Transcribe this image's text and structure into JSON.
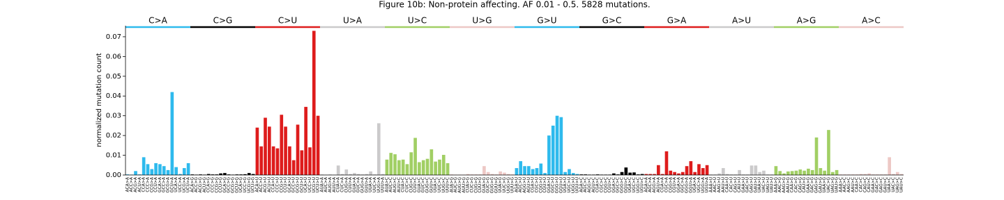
{
  "chart_data": {
    "type": "bar",
    "title": "Figure 10b: Non-protein affecting. AF 0.01 - 0.5. 5828 mutations.",
    "y_label": "normalized mutation count",
    "ylim": [
      0,
      0.0756
    ],
    "yticks": [
      {
        "value": 0,
        "label": "0.00"
      },
      {
        "value": 0.01,
        "label": "0.01"
      },
      {
        "value": 0.02,
        "label": "0.02"
      },
      {
        "value": 0.03,
        "label": "0.03"
      },
      {
        "value": 0.04,
        "label": "0.04"
      },
      {
        "value": 0.05,
        "label": "0.05"
      },
      {
        "value": 0.06,
        "label": "0.06"
      },
      {
        "value": 0.07,
        "label": "0.07"
      }
    ],
    "groups": [
      {
        "name": "C>A",
        "color": "#2ebaed",
        "categories": [
          "ACA>A",
          "ACC>A",
          "ACG>A",
          "ACU>A",
          "CCA>A",
          "CCC>A",
          "CCG>A",
          "CCU>A",
          "GCA>A",
          "GCC>A",
          "GCG>A",
          "GCU>A",
          "UCA>A",
          "UCC>A",
          "UCG>A",
          "UCU>A"
        ],
        "values": [
          0.0003,
          0.0002,
          0.002,
          0.0003,
          0.009,
          0.0055,
          0.003,
          0.006,
          0.0055,
          0.0045,
          0.0025,
          0.042,
          0.004,
          0.0005,
          0.0035,
          0.006
        ]
      },
      {
        "name": "C>G",
        "color": "#000000",
        "categories": [
          "ACA>G",
          "ACC>G",
          "ACG>G",
          "ACU>G",
          "CCA>G",
          "CCC>G",
          "CCG>G",
          "CCU>G",
          "GCA>G",
          "GCC>G",
          "GCG>G",
          "GCU>G",
          "UCA>G",
          "UCC>G",
          "UCG>G",
          "UCU>G"
        ],
        "values": [
          0.0003,
          0.0002,
          0.0003,
          0.0002,
          0.0005,
          0.0003,
          0.0003,
          0.0008,
          0.001,
          0.0003,
          0.0002,
          0.0003,
          0.0003,
          0.0004,
          0.001,
          0.0005
        ]
      },
      {
        "name": "C>U",
        "color": "#de1c1c",
        "categories": [
          "ACA>U",
          "ACC>U",
          "ACG>U",
          "ACU>U",
          "CCA>U",
          "CCC>U",
          "CCG>U",
          "CCU>U",
          "GCA>U",
          "GCC>U",
          "GCG>U",
          "GCU>U",
          "UCA>U",
          "UCC>U",
          "UCG>U",
          "UCU>U"
        ],
        "values": [
          0.024,
          0.0145,
          0.029,
          0.0245,
          0.0145,
          0.0135,
          0.0305,
          0.0245,
          0.0145,
          0.0075,
          0.0255,
          0.0125,
          0.0345,
          0.014,
          0.073,
          0.03
        ]
      },
      {
        "name": "U>A",
        "color": "#cbcacb",
        "categories": [
          "AUA>A",
          "AUC>A",
          "AUG>A",
          "AUU>A",
          "CUA>A",
          "CUC>A",
          "CUG>A",
          "CUU>A",
          "GUA>A",
          "GUC>A",
          "GUG>A",
          "GUU>A",
          "UUA>A",
          "UUC>A",
          "UUG>A",
          "UUU>A"
        ],
        "values": [
          0.0003,
          0.0002,
          0.0003,
          0.0002,
          0.0048,
          0.0005,
          0.0028,
          0.0005,
          0.001,
          0.0005,
          0.0003,
          0.0005,
          0.0018,
          0.0003,
          0.0262,
          0.0005
        ]
      },
      {
        "name": "U>C",
        "color": "#a1cf64",
        "categories": [
          "AUA>C",
          "AUC>C",
          "AUG>C",
          "AUU>C",
          "CUA>C",
          "CUC>C",
          "CUG>C",
          "CUU>C",
          "GUA>C",
          "GUC>C",
          "GUG>C",
          "GUU>C",
          "UUA>C",
          "UUC>C",
          "UUG>C",
          "UUU>C"
        ],
        "values": [
          0.0078,
          0.0112,
          0.0105,
          0.0075,
          0.0078,
          0.0055,
          0.0115,
          0.0188,
          0.0065,
          0.0075,
          0.0082,
          0.013,
          0.0068,
          0.0078,
          0.0102,
          0.006
        ]
      },
      {
        "name": "U>G",
        "color": "#edc8c5",
        "categories": [
          "AUA>G",
          "AUC>G",
          "AUG>G",
          "AUU>G",
          "CUA>G",
          "CUC>G",
          "CUG>G",
          "CUU>G",
          "GUA>G",
          "GUC>G",
          "GUG>G",
          "GUU>G",
          "UUA>G",
          "UUC>G",
          "UUG>G",
          "UUU>G"
        ],
        "values": [
          0.0003,
          0.0002,
          0.0002,
          0.0002,
          0.0005,
          0.0003,
          0.0003,
          0.0003,
          0.0045,
          0.0015,
          0.0005,
          0.0003,
          0.0018,
          0.0012,
          0.0005,
          0.0003
        ]
      },
      {
        "name": "G>U",
        "color": "#2ebaed",
        "categories": [
          "AGA>U",
          "AGC>U",
          "AGG>U",
          "AGU>U",
          "CGA>U",
          "CGC>U",
          "CGG>U",
          "CGU>U",
          "GGA>U",
          "GGC>U",
          "GGG>U",
          "GGU>U",
          "UGA>U",
          "UGC>U",
          "UGG>U",
          "UGU>U"
        ],
        "values": [
          0.0035,
          0.007,
          0.0045,
          0.0045,
          0.003,
          0.0035,
          0.0058,
          0.001,
          0.02,
          0.025,
          0.03,
          0.0293,
          0.0015,
          0.003,
          0.001,
          0.0005
        ]
      },
      {
        "name": "G>C",
        "color": "#000000",
        "categories": [
          "AGA>C",
          "AGC>C",
          "AGG>C",
          "AGU>C",
          "CGA>C",
          "CGC>C",
          "CGG>C",
          "CGU>C",
          "GGA>C",
          "GGC>C",
          "GGG>C",
          "GGU>C",
          "UGA>C",
          "UGC>C",
          "UGG>C",
          "UGU>C"
        ],
        "values": [
          0.0003,
          0.0003,
          0.0002,
          0.0002,
          0.0003,
          0.0002,
          0.0002,
          0.0002,
          0.0008,
          0.0003,
          0.0015,
          0.0038,
          0.0012,
          0.0013,
          0.0003,
          0.0005
        ]
      },
      {
        "name": "G>A",
        "color": "#de1c1c",
        "categories": [
          "AGA>A",
          "AGC>A",
          "AGG>A",
          "AGU>A",
          "CGA>A",
          "CGC>A",
          "CGG>A",
          "CGU>A",
          "GGA>A",
          "GGC>A",
          "GGG>A",
          "GGU>A",
          "UGA>A",
          "UGC>A",
          "UGG>A",
          "UGU>A"
        ],
        "values": [
          0.0005,
          0.0005,
          0.0005,
          0.005,
          0.0005,
          0.012,
          0.0022,
          0.0015,
          0.0008,
          0.0015,
          0.0045,
          0.007,
          0.0015,
          0.0055,
          0.0035,
          0.005
        ]
      },
      {
        "name": "A>U",
        "color": "#cbcacb",
        "categories": [
          "AAA>U",
          "AAC>U",
          "AAG>U",
          "AAU>U",
          "CAA>U",
          "CAC>U",
          "CAG>U",
          "CAU>U",
          "GAA>U",
          "GAC>U",
          "GAG>U",
          "GAU>U",
          "UAA>U",
          "UAC>U",
          "UAG>U",
          "UAU>U"
        ],
        "values": [
          0.0003,
          0.0003,
          0.0008,
          0.0035,
          0.0005,
          0.0003,
          0.0003,
          0.0025,
          0.0003,
          0.0003,
          0.0048,
          0.0048,
          0.0015,
          0.0022,
          0.0003,
          0.0003
        ]
      },
      {
        "name": "A>G",
        "color": "#a1cf64",
        "categories": [
          "AAA>G",
          "AAC>G",
          "AAG>G",
          "AAU>G",
          "CAA>G",
          "CAC>G",
          "CAG>G",
          "CAU>G",
          "GAA>G",
          "GAC>G",
          "GAG>G",
          "GAU>G",
          "UAA>G",
          "UAC>G",
          "UAG>G",
          "UAU>G"
        ],
        "values": [
          0.0045,
          0.002,
          0.0008,
          0.0018,
          0.002,
          0.0022,
          0.0028,
          0.0022,
          0.0032,
          0.0025,
          0.019,
          0.0035,
          0.0022,
          0.0228,
          0.0015,
          0.0025
        ]
      },
      {
        "name": "A>C",
        "color": "#edc8c5",
        "categories": [
          "AAA>C",
          "AAC>C",
          "AAG>C",
          "AAU>C",
          "CAA>C",
          "CAC>C",
          "CAG>C",
          "CAU>C",
          "GAA>C",
          "GAC>C",
          "GAG>C",
          "GAU>C",
          "UAA>C",
          "UAC>C",
          "UAG>C",
          "UAU>C"
        ],
        "values": [
          0.0003,
          0.0003,
          0.0003,
          0.0003,
          0.0003,
          0.0005,
          0.0005,
          0.0008,
          0.0003,
          0.0003,
          0.0003,
          0.0003,
          0.009,
          0.0005,
          0.0015,
          0.0005
        ]
      }
    ]
  }
}
